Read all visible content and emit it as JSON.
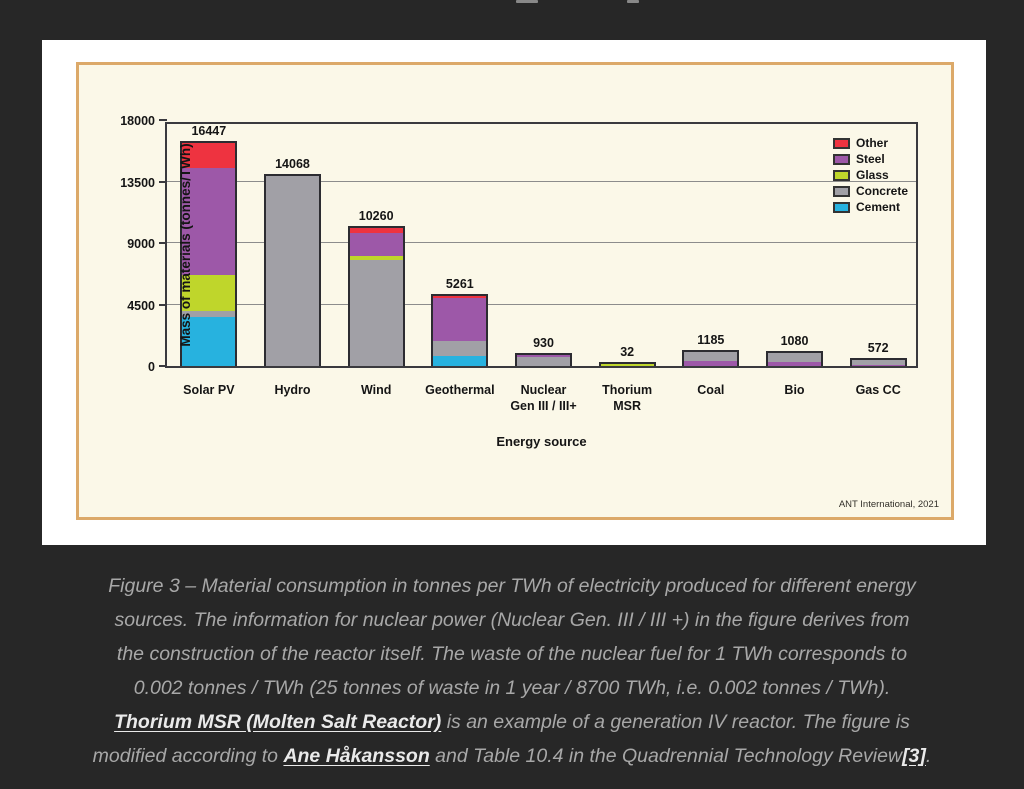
{
  "chart_data": {
    "type": "bar",
    "stacked": true,
    "title": "",
    "xlabel": "Energy source",
    "ylabel": "Mass of materials (tonnes/TWh)",
    "ylim": [
      0,
      18000
    ],
    "yticks": [
      {
        "value": 0,
        "label": "0"
      },
      {
        "value": 4500,
        "label": "4500"
      },
      {
        "value": 9000,
        "label": "9000"
      },
      {
        "value": 13500,
        "label": "13500"
      },
      {
        "value": 18000,
        "label": "18000"
      }
    ],
    "gridlines": [
      4500,
      9000,
      13500
    ],
    "legend_position": "top-right",
    "legend": [
      "Other",
      "Steel",
      "Glass",
      "Concrete",
      "Cement"
    ],
    "colors": {
      "Other": "#ee3340",
      "Steel": "#9d58a8",
      "Glass": "#bfd62b",
      "Concrete": "#a1a0a6",
      "Cement": "#27b2df"
    },
    "categories": [
      "Solar PV",
      "Hydro",
      "Wind",
      "Geothermal",
      "Nuclear\nGen III / III+",
      "Thorium\nMSR",
      "Coal",
      "Bio",
      "Gas CC"
    ],
    "bars": [
      {
        "category": "Solar PV",
        "total": 16447,
        "total_label": "16447",
        "segments": [
          [
            "Cement",
            3600
          ],
          [
            "Concrete",
            450
          ],
          [
            "Glass",
            2650
          ],
          [
            "Steel",
            7950
          ],
          [
            "Other",
            1797
          ]
        ]
      },
      {
        "category": "Hydro",
        "total": 14068,
        "total_label": "14068",
        "segments": [
          [
            "Concrete",
            14068
          ]
        ]
      },
      {
        "category": "Wind",
        "total": 10260,
        "total_label": "10260",
        "segments": [
          [
            "Concrete",
            7900
          ],
          [
            "Glass",
            300
          ],
          [
            "Steel",
            1700
          ],
          [
            "Other",
            360
          ]
        ]
      },
      {
        "category": "Geothermal",
        "total": 5261,
        "total_label": "5261",
        "segments": [
          [
            "Cement",
            750
          ],
          [
            "Concrete",
            1100
          ],
          [
            "Steel",
            3300
          ],
          [
            "Other",
            111
          ]
        ]
      },
      {
        "category": "Nuclear Gen III / III+",
        "total": 930,
        "total_label": "930",
        "segments": [
          [
            "Concrete",
            780
          ],
          [
            "Steel",
            150
          ]
        ]
      },
      {
        "category": "Thorium MSR",
        "total": 32,
        "total_label": "32",
        "segments": [
          [
            "Glass",
            32
          ]
        ]
      },
      {
        "category": "Coal",
        "total": 1185,
        "total_label": "1185",
        "segments": [
          [
            "Steel",
            400
          ],
          [
            "Concrete",
            785
          ]
        ]
      },
      {
        "category": "Bio",
        "total": 1080,
        "total_label": "1080",
        "segments": [
          [
            "Steel",
            380
          ],
          [
            "Concrete",
            700
          ]
        ]
      },
      {
        "category": "Gas CC",
        "total": 572,
        "total_label": "572",
        "segments": [
          [
            "Steel",
            120
          ],
          [
            "Concrete",
            452
          ]
        ]
      }
    ],
    "credit": "ANT International, 2021"
  },
  "caption": {
    "lines": [
      {
        "parts": [
          {
            "text": "Figure 3 – Material consumption in tonnes per TWh of electricity produced for different energy"
          }
        ]
      },
      {
        "parts": [
          {
            "text": "sources. The information for nuclear power (Nuclear Gen. III / III +) in the figure derives from"
          }
        ]
      },
      {
        "parts": [
          {
            "text": "the construction of the reactor itself. The waste of the nuclear fuel for 1 TWh corresponds to"
          }
        ]
      },
      {
        "parts": [
          {
            "text": "0.002 tonnes / TWh (25 tonnes of waste in 1 year / 8700 TWh, i.e. 0.002 tonnes / TWh)."
          }
        ]
      },
      {
        "parts": [
          {
            "text": "Thorium MSR (Molten Salt Reactor)",
            "link": true
          },
          {
            "text": " is an example of a generation IV reactor. The figure is"
          }
        ]
      },
      {
        "parts": [
          {
            "text": "modified according to "
          },
          {
            "text": "Ane Håkansson",
            "link": true
          },
          {
            "text": " and Table 10.4 in the Quadrennial Technology Review"
          },
          {
            "text": "[3]",
            "link": true
          },
          {
            "text": "."
          }
        ]
      }
    ]
  }
}
